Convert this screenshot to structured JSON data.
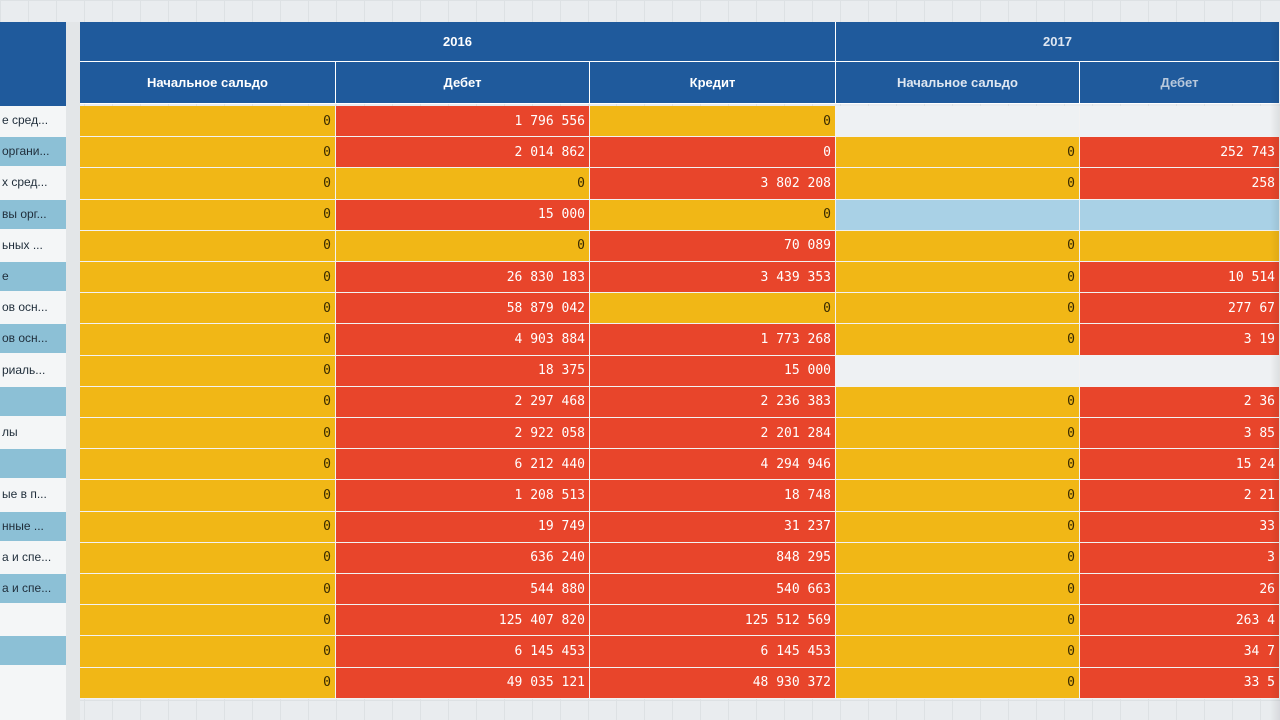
{
  "years": [
    "2016",
    "2017"
  ],
  "headers_2016": [
    "Начальное сальдо",
    "Дебет",
    "Кредит"
  ],
  "headers_2017": [
    "Начальное сальдо",
    "Дебет"
  ],
  "row_labels": [
    "е сред...",
    "органи...",
    "х сред...",
    "вы орг...",
    "ьных ...",
    "е",
    "ов осн...",
    "ов осн...",
    "риаль...",
    "",
    "лы",
    "",
    "ые в п...",
    "нные ...",
    "а и спе...",
    "а и спе...",
    "",
    "",
    ""
  ],
  "rows": [
    {
      "a": "0",
      "b": "1 796 556",
      "c": "0",
      "d": "",
      "e": ""
    },
    {
      "a": "0",
      "b": "2 014 862",
      "c": "0",
      "d": "0",
      "e": "252 743"
    },
    {
      "a": "0",
      "b": "0",
      "c": "3 802 208",
      "d": "0",
      "e": "258"
    },
    {
      "a": "0",
      "b": "15 000",
      "c": "0",
      "d": "",
      "e": ""
    },
    {
      "a": "0",
      "b": "0",
      "c": "70 089",
      "d": "0",
      "e": ""
    },
    {
      "a": "0",
      "b": "26 830 183",
      "c": "3 439 353",
      "d": "0",
      "e": "10 514"
    },
    {
      "a": "0",
      "b": "58 879 042",
      "c": "0",
      "d": "0",
      "e": "277 67"
    },
    {
      "a": "0",
      "b": "4 903 884",
      "c": "1 773 268",
      "d": "0",
      "e": "3 19"
    },
    {
      "a": "0",
      "b": "18 375",
      "c": "15 000",
      "d": "",
      "e": ""
    },
    {
      "a": "0",
      "b": "2 297 468",
      "c": "2 236 383",
      "d": "0",
      "e": "2 36"
    },
    {
      "a": "0",
      "b": "2 922 058",
      "c": "2 201 284",
      "d": "0",
      "e": "3 85"
    },
    {
      "a": "0",
      "b": "6 212 440",
      "c": "4 294 946",
      "d": "0",
      "e": "15 24"
    },
    {
      "a": "0",
      "b": "1 208 513",
      "c": "18 748",
      "d": "0",
      "e": "2 21"
    },
    {
      "a": "0",
      "b": "19 749",
      "c": "31 237",
      "d": "0",
      "e": "33"
    },
    {
      "a": "0",
      "b": "636 240",
      "c": "848 295",
      "d": "0",
      "e": "3"
    },
    {
      "a": "0",
      "b": "544 880",
      "c": "540 663",
      "d": "0",
      "e": "26"
    },
    {
      "a": "0",
      "b": "125 407 820",
      "c": "125 512 569",
      "d": "0",
      "e": "263 4"
    },
    {
      "a": "0",
      "b": "6 145 453",
      "c": "6 145 453",
      "d": "0",
      "e": "34 7"
    },
    {
      "a": "0",
      "b": "49 035 121",
      "c": "48 930 372",
      "d": "0",
      "e": "33 5"
    }
  ],
  "colors": {
    "yellow": "#f1b716",
    "red": "#e8452b",
    "header": "#1f5a9c",
    "light_blue": "#a9d1e6"
  }
}
